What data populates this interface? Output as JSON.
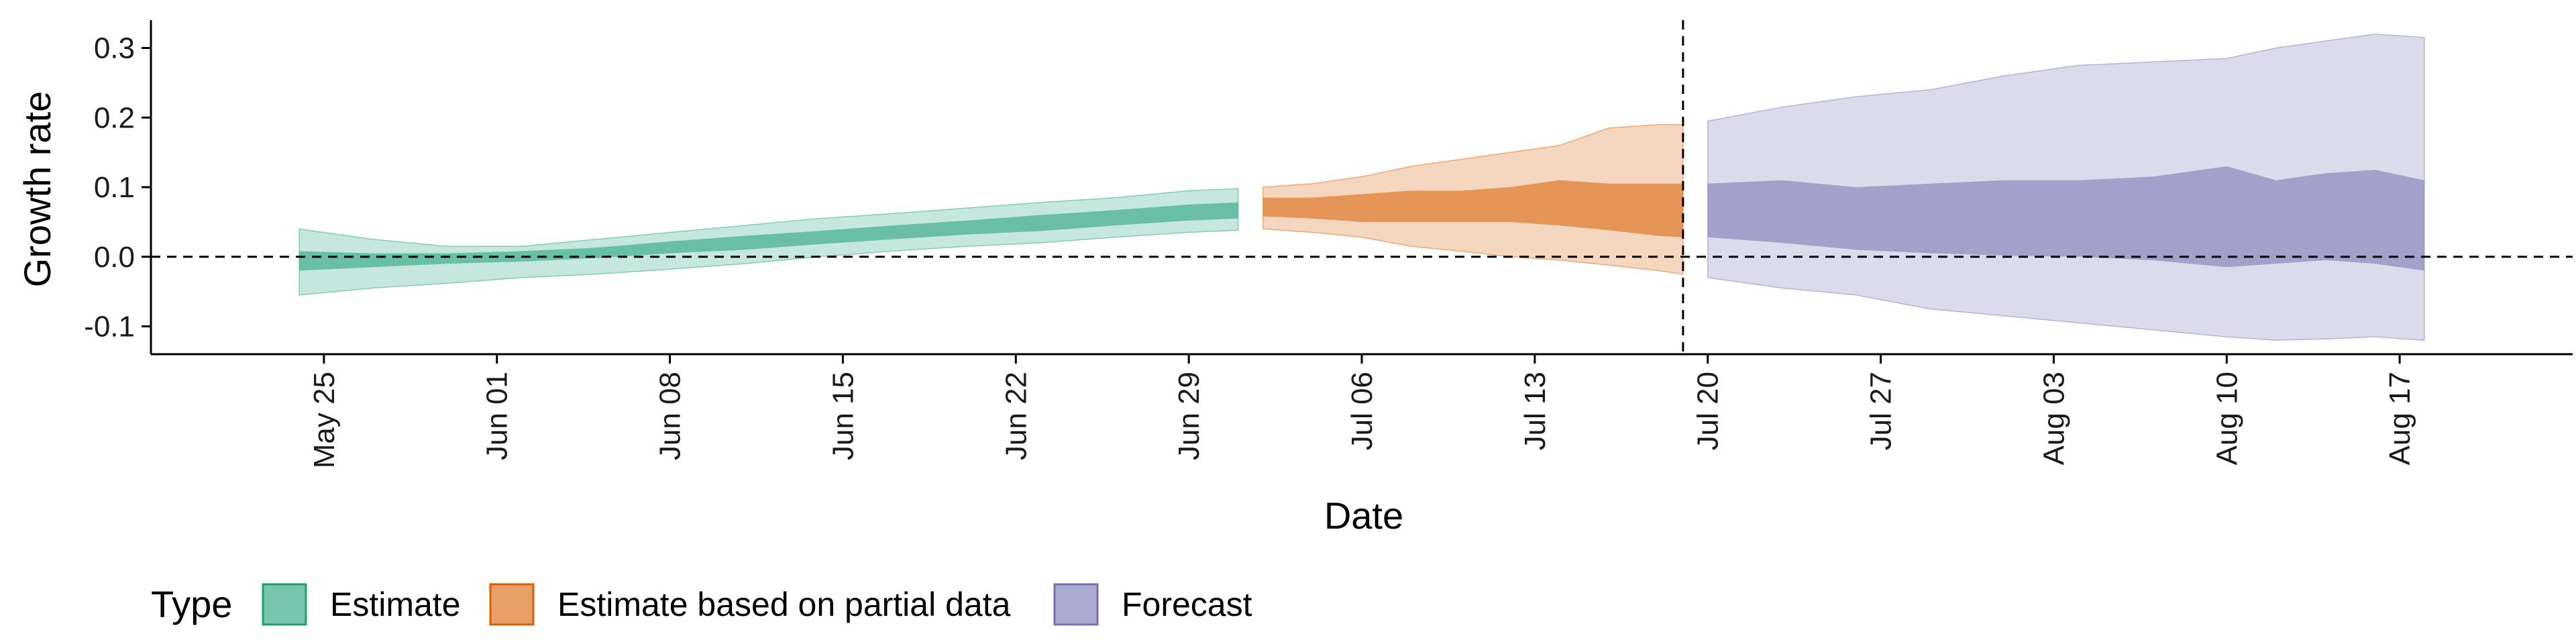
{
  "chart_data": {
    "type": "area",
    "xlabel": "Date",
    "ylabel": "Growth rate",
    "x_ticks": [
      "May 25",
      "Jun 01",
      "Jun 08",
      "Jun 15",
      "Jun 22",
      "Jun 29",
      "Jul 06",
      "Jul 13",
      "Jul 20",
      "Jul 27",
      "Aug 03",
      "Aug 10",
      "Aug 17"
    ],
    "x_tick_dates": [
      "2020-05-25",
      "2020-06-01",
      "2020-06-08",
      "2020-06-15",
      "2020-06-22",
      "2020-06-29",
      "2020-07-06",
      "2020-07-13",
      "2020-07-20",
      "2020-07-27",
      "2020-08-03",
      "2020-08-10",
      "2020-08-17"
    ],
    "xlim": [
      "2020-05-18",
      "2020-08-24"
    ],
    "y_ticks": [
      "-0.1",
      "0.0",
      "0.1",
      "0.2",
      "0.3"
    ],
    "y_tick_values": [
      -0.1,
      0.0,
      0.1,
      0.2,
      0.3
    ],
    "ylim": [
      -0.14,
      0.34
    ],
    "reference_lines": [
      {
        "axis": "y",
        "value": 0.0,
        "style": "dashed"
      },
      {
        "axis": "x",
        "value": "2020-07-19",
        "style": "dashed"
      }
    ],
    "grid": false,
    "legend": {
      "title": "Type",
      "position": "bottom-left",
      "entries": [
        "Estimate",
        "Estimate based on partial data",
        "Forecast"
      ]
    },
    "series": [
      {
        "name": "Estimate",
        "color": "#1b9e77",
        "x": [
          "2020-05-24",
          "2020-05-27",
          "2020-05-30",
          "2020-06-02",
          "2020-06-05",
          "2020-06-08",
          "2020-06-11",
          "2020-06-14",
          "2020-06-17",
          "2020-06-20",
          "2020-06-23",
          "2020-06-26",
          "2020-06-29",
          "2020-07-01"
        ],
        "outer_lower": [
          -0.055,
          -0.045,
          -0.038,
          -0.03,
          -0.025,
          -0.018,
          -0.01,
          0.0,
          0.008,
          0.015,
          0.02,
          0.028,
          0.035,
          0.038
        ],
        "outer_upper": [
          0.04,
          0.025,
          0.015,
          0.015,
          0.025,
          0.035,
          0.045,
          0.055,
          0.062,
          0.07,
          0.078,
          0.085,
          0.095,
          0.098
        ],
        "inner_lower": [
          -0.02,
          -0.015,
          -0.01,
          -0.007,
          -0.002,
          0.005,
          0.01,
          0.018,
          0.025,
          0.032,
          0.037,
          0.045,
          0.052,
          0.055
        ],
        "inner_upper": [
          0.008,
          0.005,
          0.005,
          0.008,
          0.013,
          0.022,
          0.03,
          0.037,
          0.045,
          0.052,
          0.06,
          0.067,
          0.075,
          0.078
        ]
      },
      {
        "name": "Estimate based on partial data",
        "color": "#d95f02",
        "x": [
          "2020-07-02",
          "2020-07-04",
          "2020-07-06",
          "2020-07-08",
          "2020-07-10",
          "2020-07-12",
          "2020-07-14",
          "2020-07-16",
          "2020-07-18",
          "2020-07-19"
        ],
        "outer_lower": [
          0.04,
          0.035,
          0.028,
          0.015,
          0.008,
          0.0,
          -0.005,
          -0.012,
          -0.02,
          -0.025
        ],
        "outer_upper": [
          0.1,
          0.105,
          0.115,
          0.13,
          0.14,
          0.15,
          0.16,
          0.185,
          0.19,
          0.19
        ],
        "inner_lower": [
          0.058,
          0.055,
          0.05,
          0.05,
          0.05,
          0.05,
          0.045,
          0.038,
          0.03,
          0.028
        ],
        "inner_upper": [
          0.085,
          0.085,
          0.09,
          0.095,
          0.095,
          0.1,
          0.11,
          0.105,
          0.105,
          0.105
        ]
      },
      {
        "name": "Forecast",
        "color": "#7570b3",
        "x": [
          "2020-07-20",
          "2020-07-23",
          "2020-07-26",
          "2020-07-29",
          "2020-08-01",
          "2020-08-04",
          "2020-08-07",
          "2020-08-10",
          "2020-08-12",
          "2020-08-14",
          "2020-08-16",
          "2020-08-18"
        ],
        "outer_lower": [
          -0.03,
          -0.045,
          -0.055,
          -0.075,
          -0.085,
          -0.095,
          -0.105,
          -0.115,
          -0.12,
          -0.118,
          -0.115,
          -0.12
        ],
        "outer_upper": [
          0.195,
          0.215,
          0.23,
          0.24,
          0.26,
          0.275,
          0.28,
          0.285,
          0.3,
          0.31,
          0.32,
          0.315
        ],
        "inner_lower": [
          0.028,
          0.02,
          0.01,
          0.005,
          0.002,
          0.0,
          -0.005,
          -0.015,
          -0.01,
          -0.005,
          -0.01,
          -0.02
        ],
        "inner_upper": [
          0.105,
          0.11,
          0.1,
          0.105,
          0.11,
          0.11,
          0.115,
          0.13,
          0.11,
          0.12,
          0.125,
          0.11
        ]
      }
    ]
  }
}
